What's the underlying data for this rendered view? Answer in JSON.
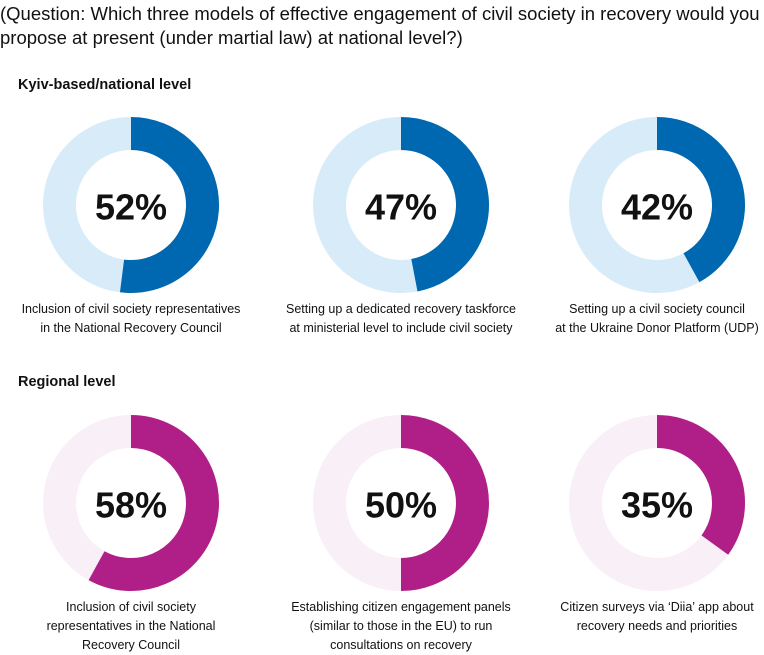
{
  "title": "(Question: Which three models of effective engagement of civil society in recovery would you propose at present (under martial law) at national level?)",
  "headings": [
    "Kyiv-based/national level",
    "Regional level"
  ],
  "chart_data": [
    {
      "type": "donut",
      "title": "Inclusion of civil society representatives\nin the National Recovery Council",
      "values": [
        52
      ],
      "value_labels": [
        "52%"
      ],
      "color": "#0067b1",
      "track_color": "#d7ebf8"
    },
    {
      "type": "donut",
      "title": "Setting up a dedicated recovery taskforce\nat ministerial level to include civil society",
      "values": [
        47
      ],
      "value_labels": [
        "47%"
      ],
      "color": "#0067b1",
      "track_color": "#d7ebf8"
    },
    {
      "type": "donut",
      "title": "Setting up a civil society council\nat the Ukraine Donor Platform (UDP)",
      "values": [
        42
      ],
      "value_labels": [
        "42%"
      ],
      "color": "#0067b1",
      "track_color": "#d7ebf8"
    },
    {
      "type": "donut",
      "title": "Inclusion of civil society\nrepresentatives in the National\nRecovery Council",
      "values": [
        58
      ],
      "value_labels": [
        "58%"
      ],
      "color": "#b01f87",
      "track_color": "#f8eff7"
    },
    {
      "type": "donut",
      "title": "Establishing citizen engagement panels\n(similar to those in the EU) to run\nconsultations on recovery",
      "values": [
        50
      ],
      "value_labels": [
        "50%"
      ],
      "color": "#b01f87",
      "track_color": "#f8eff7"
    },
    {
      "type": "donut",
      "title": "Citizen surveys via ‘Diia’ app about\nrecovery needs and priorities",
      "values": [
        35
      ],
      "value_labels": [
        "35%"
      ],
      "color": "#b01f87",
      "track_color": "#f8eff7"
    }
  ]
}
